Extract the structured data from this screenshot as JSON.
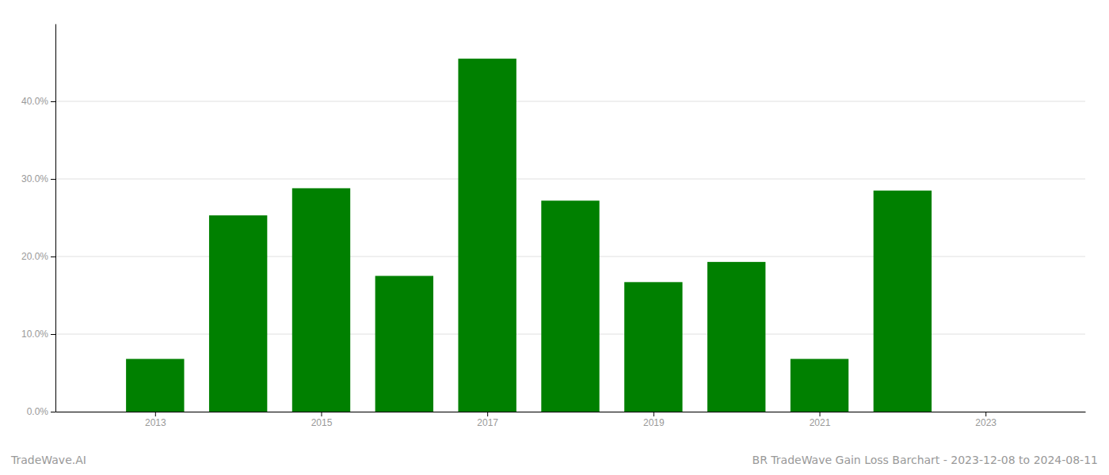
{
  "chart_data": {
    "type": "bar",
    "title": "BR TradeWave Gain Loss Barchart - 2023-12-08 to 2024-08-11",
    "annotations": [
      "TradeWave.AI"
    ],
    "x": [
      2013,
      2014,
      2015,
      2016,
      2017,
      2018,
      2019,
      2020,
      2021,
      2022
    ],
    "values": [
      0.068,
      0.253,
      0.288,
      0.175,
      0.455,
      0.272,
      0.167,
      0.193,
      0.068,
      0.285
    ],
    "color": "#008000",
    "xlim": [
      2011.8,
      2024.2
    ],
    "xticks": [
      2013,
      2015,
      2017,
      2019,
      2021,
      2023
    ],
    "ylim": [
      0,
      0.5
    ],
    "yticks": [
      {
        "value": 0.0,
        "label": "0.0%"
      },
      {
        "value": 0.1,
        "label": "10.0%"
      },
      {
        "value": 0.2,
        "label": "20.0%"
      },
      {
        "value": 0.3,
        "label": "30.0%"
      },
      {
        "value": 0.4,
        "label": "40.0%"
      }
    ],
    "grid": true
  }
}
